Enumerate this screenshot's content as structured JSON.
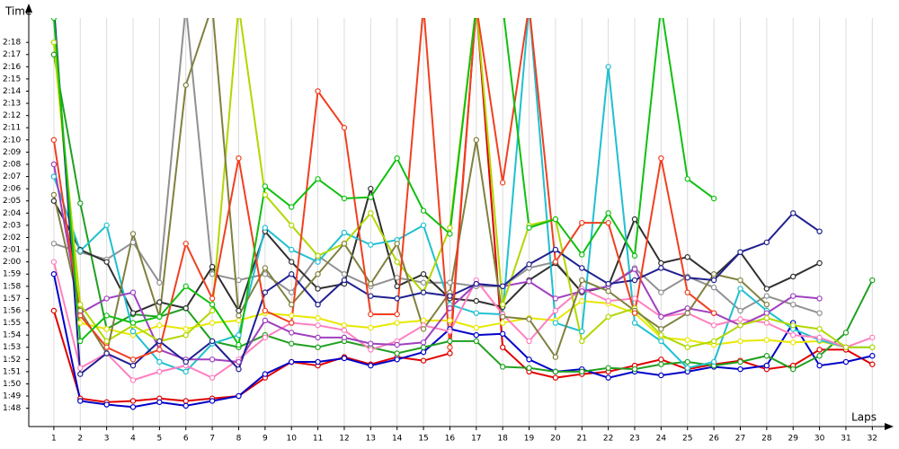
{
  "chart_data": {
    "type": "line",
    "x_label": "Laps",
    "y_label": "Time",
    "grid": true,
    "x": [
      1,
      2,
      3,
      4,
      5,
      6,
      7,
      8,
      9,
      10,
      11,
      12,
      13,
      14,
      15,
      16,
      17,
      18,
      19,
      20,
      21,
      22,
      23,
      24,
      25,
      26,
      27,
      28,
      29,
      30,
      31,
      32
    ],
    "xlim": [
      0.05,
      32.5
    ],
    "xticks": [
      1,
      2,
      3,
      4,
      5,
      6,
      7,
      8,
      9,
      10,
      11,
      12,
      13,
      14,
      15,
      16,
      17,
      18,
      19,
      20,
      21,
      22,
      23,
      24,
      25,
      26,
      27,
      28,
      29,
      30,
      31,
      32
    ],
    "ylim": [
      106.5,
      140
    ],
    "yticks": [
      {
        "value": 108,
        "label": "1:48"
      },
      {
        "value": 109,
        "label": "1:49"
      },
      {
        "value": 110,
        "label": "1:50"
      },
      {
        "value": 111,
        "label": "1:51"
      },
      {
        "value": 112,
        "label": "1:52"
      },
      {
        "value": 113,
        "label": "1:53"
      },
      {
        "value": 114,
        "label": "1:54"
      },
      {
        "value": 115,
        "label": "1:55"
      },
      {
        "value": 116,
        "label": "1:56"
      },
      {
        "value": 117,
        "label": "1:57"
      },
      {
        "value": 118,
        "label": "1:58"
      },
      {
        "value": 119,
        "label": "1:59"
      },
      {
        "value": 120,
        "label": "2:00"
      },
      {
        "value": 121,
        "label": "2:01"
      },
      {
        "value": 122,
        "label": "2:02"
      },
      {
        "value": 123,
        "label": "2:03"
      },
      {
        "value": 124,
        "label": "2:04"
      },
      {
        "value": 125,
        "label": "2:05"
      },
      {
        "value": 126,
        "label": "2:06"
      },
      {
        "value": 127,
        "label": "2:07"
      },
      {
        "value": 128,
        "label": "2:08"
      },
      {
        "value": 129,
        "label": "2:09"
      },
      {
        "value": 130,
        "label": "2:10"
      },
      {
        "value": 131,
        "label": "2:11"
      },
      {
        "value": 132,
        "label": "2:12"
      },
      {
        "value": 133,
        "label": "2:13"
      },
      {
        "value": 134,
        "label": "2:14"
      },
      {
        "value": 135,
        "label": "2:15"
      },
      {
        "value": 136,
        "label": "2:16"
      },
      {
        "value": 137,
        "label": "2:17"
      },
      {
        "value": 138,
        "label": "2:18"
      }
    ],
    "series": [
      {
        "color": "#e00000",
        "values": [
          116,
          108.8,
          108.5,
          108.6,
          108.8,
          108.6,
          108.8,
          109,
          110.5,
          111.8,
          111.5,
          112.2,
          111.6,
          112.2,
          111.9,
          112.5,
          141,
          113,
          111,
          110.5,
          110.8,
          111,
          111.5,
          112,
          111.2,
          111.6,
          111.9,
          111.2,
          111.5,
          112.8,
          112.8,
          111.6
        ]
      },
      {
        "color": "#0000c8",
        "values": [
          119,
          108.6,
          108.3,
          108.1,
          108.5,
          108.2,
          108.6,
          109,
          110.8,
          111.8,
          111.8,
          112.1,
          111.5,
          112,
          112.6,
          114.5,
          114,
          114.1,
          112,
          111,
          111.2,
          110.5,
          111,
          110.7,
          111,
          111.4,
          111.2,
          111.5,
          115,
          111.5,
          111.8,
          112.3
        ]
      },
      {
        "color": "#20a020",
        "values": [
          137,
          124.8,
          114.5,
          115.7,
          115.5,
          116.2,
          113.5,
          113,
          114,
          113.3,
          113,
          113.5,
          113,
          112.5,
          113,
          113.5,
          113.5,
          111.4,
          111.3,
          111,
          111,
          111.3,
          111.2,
          111.6,
          111.8,
          111.5,
          111.8,
          112.3,
          111.2,
          112.3,
          114.2,
          118.5
        ]
      },
      {
        "color": "#e8e800",
        "values": [
          138,
          115,
          114.5,
          114,
          114.8,
          114.5,
          115,
          115.2,
          115.8,
          115.6,
          115.4,
          114.8,
          114.6,
          115,
          115.2,
          115.2,
          114.6,
          115,
          115.4,
          115.2,
          116.8,
          116.6,
          115.8,
          113.8,
          113.6,
          113.2,
          113.5,
          113.6,
          113.4,
          113.5,
          113,
          null
        ]
      },
      {
        "color": "#909090",
        "values": [
          121.5,
          120.8,
          120.2,
          121.6,
          118.3,
          141,
          119,
          118.5,
          119,
          117.5,
          120.5,
          119,
          118,
          118.7,
          118.3,
          118.3,
          118,
          118,
          119.5,
          120,
          117.5,
          118,
          119.5,
          117.5,
          118.8,
          117.9,
          116,
          117.2,
          116.5,
          115.8,
          null,
          null
        ]
      },
      {
        "color": "#303030",
        "values": [
          125,
          121,
          120,
          115.8,
          116.7,
          116.2,
          119.6,
          116,
          122.5,
          120,
          117.8,
          118.2,
          126,
          118,
          119,
          117,
          116.8,
          116.3,
          118.5,
          119.9,
          117.5,
          118,
          123.5,
          119.9,
          120.4,
          118.8,
          120.8,
          117.8,
          118.8,
          119.9,
          null,
          null
        ]
      },
      {
        "color": "#20c0d0",
        "values": [
          127,
          120.9,
          123,
          114.3,
          111.8,
          111,
          113.3,
          114,
          122.8,
          121,
          120,
          122.4,
          121.4,
          121.8,
          123,
          116.5,
          115.8,
          115.7,
          141,
          115,
          114.3,
          136,
          115,
          113.5,
          111.3,
          111.8,
          117.8,
          116,
          114.5,
          113.6,
          113,
          113
        ]
      },
      {
        "color": "#ff80c0",
        "values": [
          120,
          111.3,
          112.5,
          110.3,
          111,
          111.5,
          110.5,
          112,
          113.8,
          115,
          114.8,
          114.4,
          112.8,
          113.5,
          114.8,
          114.3,
          118.5,
          115.7,
          113.5,
          116,
          117.8,
          116.8,
          117,
          115.5,
          115.8,
          114.8,
          115.3,
          115,
          114,
          113.8,
          113,
          113.8
        ]
      },
      {
        "color": "#a040c0",
        "values": [
          128,
          115.8,
          117,
          117.5,
          112.8,
          112,
          112,
          111.8,
          115.2,
          114.2,
          113.8,
          113.8,
          113.3,
          113.2,
          113.4,
          116.2,
          118.2,
          118,
          118.4,
          117,
          117.6,
          118,
          119.4,
          115.5,
          116.2,
          115.8,
          114.8,
          115.8,
          117.2,
          117,
          null,
          null
        ]
      },
      {
        "color": "#b0d800",
        "values": [
          138,
          116.5,
          113.5,
          114.8,
          113.5,
          114,
          116,
          141,
          125.5,
          123,
          120.5,
          121.5,
          124,
          120,
          117.5,
          122.8,
          141,
          116.5,
          123,
          123.5,
          113.5,
          115.5,
          116.2,
          114,
          113,
          113.5,
          114.8,
          115.4,
          114.8,
          114.5,
          113,
          113
        ]
      },
      {
        "color": "#808040",
        "values": [
          125.5,
          116,
          112.5,
          122.3,
          115.5,
          134.5,
          141,
          115.6,
          119.5,
          116.5,
          119,
          121.5,
          118.2,
          121.5,
          114.5,
          117.5,
          130,
          115.5,
          115.3,
          112.2,
          118.5,
          117.6,
          116,
          114.5,
          115.8,
          119,
          118.5,
          116.5,
          null,
          null,
          null,
          null
        ]
      },
      {
        "color": "#202090",
        "values": [
          141,
          110.8,
          112.5,
          111.5,
          113.5,
          111.8,
          113.5,
          111.2,
          117.5,
          119,
          116.5,
          118.5,
          117.2,
          117,
          117.5,
          117.2,
          118.2,
          118,
          119.8,
          121,
          119.5,
          118.2,
          118.5,
          119.5,
          118.7,
          118.5,
          120.8,
          121.6,
          124,
          122.5,
          null,
          null
        ]
      },
      {
        "color": "#f04020",
        "values": [
          130,
          115.6,
          113,
          112,
          112.8,
          121.5,
          117,
          128.5,
          116,
          115,
          134,
          131,
          115.7,
          115.7,
          141,
          113,
          141,
          126.5,
          141,
          120,
          123.2,
          123.2,
          115.8,
          128.5,
          117.5,
          115.8,
          null,
          null,
          null,
          null,
          null,
          null
        ]
      },
      {
        "color": "#10c010",
        "values": [
          140,
          113.5,
          115.6,
          115,
          115.5,
          118,
          116.5,
          113.2,
          126.2,
          124.5,
          126.8,
          125.2,
          125.3,
          128.5,
          124.2,
          122.3,
          141,
          141,
          122.8,
          123.5,
          120.6,
          124,
          120.5,
          141,
          126.8,
          125.2,
          null,
          null,
          null,
          null,
          null,
          null
        ]
      }
    ]
  }
}
